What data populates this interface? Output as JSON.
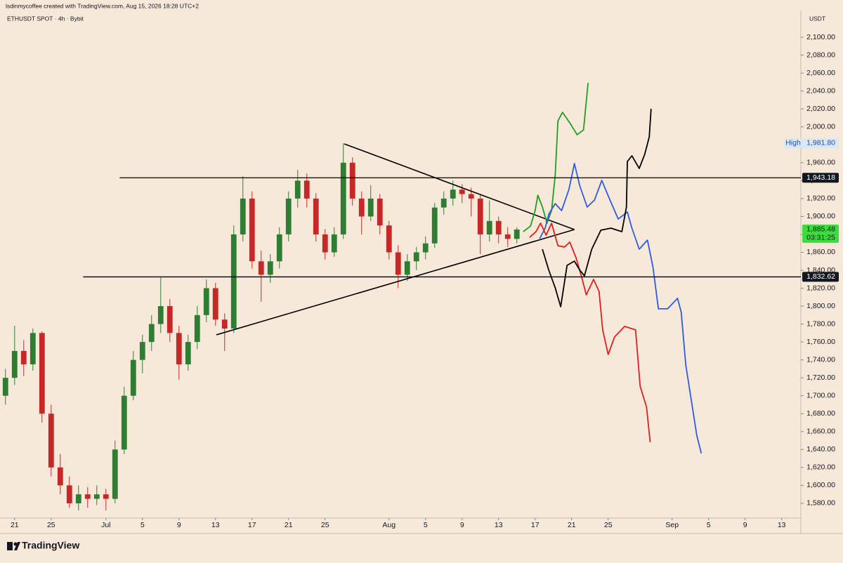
{
  "chart_data": {
    "type": "candlestick",
    "header": "lsdinmycoffee created with TradingView.com, Aug 15, 2026 18:28 UTC+2",
    "symbol": "ETHUSDT SPOT · 4h · Bybit",
    "currency": "USDT",
    "brand": "TradingView",
    "up_color": "#2e7d32",
    "down_color": "#c62828",
    "xlim": [
      -1.6,
      86.1
    ],
    "ylim": [
      1564.3,
      2129.8
    ],
    "xticks": [
      {
        "value": 0,
        "label": "21"
      },
      {
        "value": 4,
        "label": "25"
      },
      {
        "value": 10,
        "label": "Jul"
      },
      {
        "value": 14,
        "label": "5"
      },
      {
        "value": 18,
        "label": "9"
      },
      {
        "value": 22,
        "label": "13"
      },
      {
        "value": 26,
        "label": "17"
      },
      {
        "value": 30,
        "label": "21"
      },
      {
        "value": 34,
        "label": "25"
      },
      {
        "value": 41,
        "label": "Aug"
      },
      {
        "value": 45,
        "label": "5"
      },
      {
        "value": 49,
        "label": "9"
      },
      {
        "value": 53,
        "label": "13"
      },
      {
        "value": 57,
        "label": "17"
      },
      {
        "value": 61,
        "label": "21"
      },
      {
        "value": 65,
        "label": "25"
      },
      {
        "value": 72,
        "label": "Sep"
      },
      {
        "value": 76,
        "label": "5"
      },
      {
        "value": 80,
        "label": "9"
      },
      {
        "value": 84,
        "label": "13"
      }
    ],
    "yticks": [
      {
        "value": 2100,
        "label": "2,100.00"
      },
      {
        "value": 2080,
        "label": "2,080.00"
      },
      {
        "value": 2060,
        "label": "2,060.00"
      },
      {
        "value": 2040,
        "label": "2,040.00"
      },
      {
        "value": 2020,
        "label": "2,020.00"
      },
      {
        "value": 2000,
        "label": "2,000.00"
      },
      {
        "value": 1980,
        "label": "1,980.00"
      },
      {
        "value": 1960,
        "label": "1,960.00"
      },
      {
        "value": 1940,
        "label": "1,940.00"
      },
      {
        "value": 1920,
        "label": "1,920.00"
      },
      {
        "value": 1900,
        "label": "1,900.00"
      },
      {
        "value": 1880,
        "label": "1,880.00"
      },
      {
        "value": 1860,
        "label": "1,860.00"
      },
      {
        "value": 1840,
        "label": "1,840.00"
      },
      {
        "value": 1820,
        "label": "1,820.00"
      },
      {
        "value": 1800,
        "label": "1,800.00"
      },
      {
        "value": 1780,
        "label": "1,780.00"
      },
      {
        "value": 1760,
        "label": "1,760.00"
      },
      {
        "value": 1740,
        "label": "1,740.00"
      },
      {
        "value": 1720,
        "label": "1,720.00"
      },
      {
        "value": 1700,
        "label": "1,700.00"
      },
      {
        "value": 1680,
        "label": "1,680.00"
      },
      {
        "value": 1660,
        "label": "1,660.00"
      },
      {
        "value": 1640,
        "label": "1,640.00"
      },
      {
        "value": 1620,
        "label": "1,620.00"
      },
      {
        "value": 1600,
        "label": "1,600.00"
      },
      {
        "value": 1580,
        "label": "1,580.00"
      }
    ],
    "x": [
      -1,
      0,
      1,
      2,
      3,
      4,
      5,
      6,
      7,
      8,
      9,
      10,
      11,
      12,
      13,
      14,
      15,
      16,
      17,
      18,
      19,
      20,
      21,
      22,
      23,
      24,
      25,
      26,
      27,
      28,
      29,
      30,
      31,
      32,
      33,
      34,
      35,
      36,
      37,
      38,
      39,
      40,
      41,
      42,
      43,
      44,
      45,
      46,
      47,
      48,
      49,
      50,
      51,
      52,
      53,
      54,
      55
    ],
    "open": [
      1700,
      1720,
      1750,
      1735,
      1770,
      1680,
      1620,
      1600,
      1580,
      1590,
      1585,
      1590,
      1585,
      1640,
      1700,
      1740,
      1760,
      1780,
      1800,
      1770,
      1735,
      1760,
      1790,
      1820,
      1785,
      1775,
      1880,
      1920,
      1850,
      1835,
      1850,
      1880,
      1920,
      1940,
      1920,
      1880,
      1860,
      1880,
      1960,
      1920,
      1900,
      1920,
      1890,
      1860,
      1835,
      1850,
      1860,
      1870,
      1910,
      1920,
      1930,
      1925,
      1920,
      1880,
      1895,
      1880,
      1875
    ],
    "high": [
      1730,
      1778,
      1762,
      1775,
      1772,
      1690,
      1635,
      1610,
      1600,
      1598,
      1600,
      1596,
      1650,
      1710,
      1750,
      1768,
      1790,
      1832,
      1808,
      1778,
      1768,
      1800,
      1830,
      1826,
      1792,
      1890,
      1945,
      1928,
      1862,
      1858,
      1888,
      1928,
      1952,
      1948,
      1926,
      1886,
      1888,
      1981.8,
      1966,
      1928,
      1935,
      1925,
      1895,
      1868,
      1858,
      1866,
      1878,
      1915,
      1928,
      1940,
      1936,
      1932,
      1925,
      1918,
      1900,
      1888,
      1888
    ],
    "low": [
      1690,
      1712,
      1722,
      1728,
      1670,
      1610,
      1590,
      1575,
      1572,
      1575,
      1578,
      1572,
      1580,
      1635,
      1695,
      1725,
      1750,
      1770,
      1760,
      1718,
      1728,
      1752,
      1782,
      1778,
      1750,
      1770,
      1872,
      1842,
      1805,
      1826,
      1842,
      1872,
      1910,
      1910,
      1872,
      1852,
      1855,
      1875,
      1912,
      1880,
      1895,
      1880,
      1852,
      1820,
      1828,
      1840,
      1852,
      1865,
      1902,
      1912,
      1915,
      1900,
      1858,
      1872,
      1870,
      1866,
      1870
    ],
    "close": [
      1720,
      1750,
      1735,
      1770,
      1680,
      1620,
      1600,
      1580,
      1590,
      1585,
      1590,
      1585,
      1640,
      1700,
      1740,
      1760,
      1780,
      1800,
      1770,
      1735,
      1760,
      1790,
      1820,
      1785,
      1775,
      1880,
      1920,
      1850,
      1835,
      1850,
      1880,
      1920,
      1940,
      1920,
      1880,
      1860,
      1880,
      1960,
      1920,
      1900,
      1920,
      1890,
      1860,
      1835,
      1850,
      1860,
      1870,
      1910,
      1920,
      1930,
      1925,
      1920,
      1880,
      1895,
      1880,
      1875,
      1885.48
    ],
    "hlines": [
      {
        "value": 1943.18,
        "label": "1,943.18",
        "from": 11.5
      },
      {
        "value": 1832.62,
        "label": "1,832.62",
        "from": 7.5
      }
    ],
    "high_label": {
      "tag": "High",
      "value": 1981.8,
      "label": "1,981.80"
    },
    "last": {
      "value": 1885.48,
      "label": "1,885.48",
      "countdown": "03:31:25"
    },
    "trendlines": [
      {
        "x": [
          36.1,
          61.3
        ],
        "values": [
          1981,
          1885.4
        ]
      },
      {
        "x": [
          22.1,
          61.3
        ],
        "values": [
          1768,
          1885.4
        ]
      }
    ],
    "projections": [
      {
        "color": "#1f9e1f",
        "x": [
          55.7,
          56.5,
          57.0,
          57.3,
          57.8,
          58.3,
          58.8,
          59.2,
          59.5,
          60.0,
          60.8,
          61.6,
          62.3,
          62.8
        ],
        "values": [
          1883,
          1889.4,
          1906.6,
          1923.8,
          1910.5,
          1892.5,
          1906.6,
          1945.8,
          2006.8,
          2016.2,
          2004.5,
          1991.2,
          1996.6,
          2049.1
        ]
      },
      {
        "color": "#2d5be3",
        "x": [
          57.5,
          58.1,
          58.5,
          59.2,
          59.9,
          60.7,
          61.3,
          61.9,
          62.7,
          63.5,
          64.3,
          65.2,
          66.1,
          67.1,
          67.6,
          68.4,
          69.3,
          69.9,
          70.5,
          71.5,
          72.6,
          73.0,
          73.5,
          74.1,
          74.7,
          75.2
        ],
        "values": [
          1875.3,
          1887,
          1902.7,
          1914.4,
          1906.6,
          1930.1,
          1959.1,
          1934,
          1910.5,
          1918.3,
          1940.3,
          1918.3,
          1897.2,
          1905,
          1887,
          1863.5,
          1873.7,
          1844,
          1797,
          1797,
          1808.7,
          1793.1,
          1734.3,
          1695.2,
          1656,
          1635.7
        ]
      },
      {
        "color": "#e01e1e",
        "x": [
          56.4,
          57.1,
          57.6,
          58.2,
          58.8,
          59.5,
          60.2,
          60.8,
          61.5,
          62.1,
          62.6,
          63.4,
          64.0,
          64.4,
          65.0,
          65.7,
          66.8,
          68.0,
          68.5,
          69.2,
          69.6
        ],
        "values": [
          1876.8,
          1883.1,
          1892.5,
          1879.2,
          1892.5,
          1867.4,
          1865.9,
          1871.4,
          1853.4,
          1832.2,
          1812.6,
          1829.8,
          1816.5,
          1773.5,
          1746.1,
          1765.6,
          1777.4,
          1773.5,
          1710.8,
          1687.4,
          1648.2
        ]
      },
      {
        "color": "#000000",
        "x": [
          57.8,
          58.5,
          59.2,
          59.8,
          60.5,
          61.3,
          61.9,
          62.4,
          63.2,
          64.2,
          65.3,
          66.5,
          67.0,
          67.1,
          67.6,
          68.4,
          69.0,
          69.5,
          69.7
        ],
        "values": [
          1863.5,
          1840,
          1820.5,
          1799.3,
          1845.5,
          1850.2,
          1840,
          1833.8,
          1863.5,
          1884.7,
          1887,
          1883.1,
          1910.5,
          1961.4,
          1967.7,
          1953.6,
          1969.3,
          1988.8,
          2020.1
        ]
      }
    ]
  }
}
